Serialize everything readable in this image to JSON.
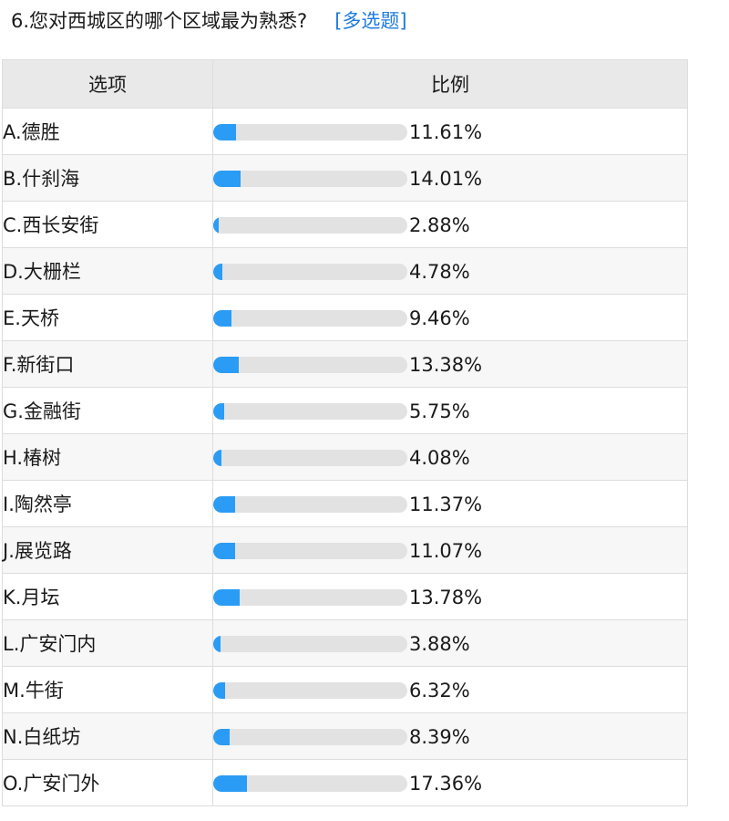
{
  "question": {
    "text": "6.您对西城区的哪个区域最为熟悉?",
    "type_label": "[多选题]"
  },
  "table": {
    "headers": [
      "选项",
      "比例"
    ],
    "rows": [
      {
        "option": "A.德胜",
        "percent_label": "11.61%",
        "percent": 11.61
      },
      {
        "option": "B.什刹海",
        "percent_label": "14.01%",
        "percent": 14.01
      },
      {
        "option": "C.西长安街",
        "percent_label": "2.88%",
        "percent": 2.88
      },
      {
        "option": "D.大栅栏",
        "percent_label": "4.78%",
        "percent": 4.78
      },
      {
        "option": "E.天桥",
        "percent_label": "9.46%",
        "percent": 9.46
      },
      {
        "option": "F.新街口",
        "percent_label": "13.38%",
        "percent": 13.38
      },
      {
        "option": "G.金融街",
        "percent_label": "5.75%",
        "percent": 5.75
      },
      {
        "option": "H.椿树",
        "percent_label": "4.08%",
        "percent": 4.08
      },
      {
        "option": "I.陶然亭",
        "percent_label": "11.37%",
        "percent": 11.37
      },
      {
        "option": "J.展览路",
        "percent_label": "11.07%",
        "percent": 11.07
      },
      {
        "option": "K.月坛",
        "percent_label": "13.78%",
        "percent": 13.78
      },
      {
        "option": "L.广安门内",
        "percent_label": "3.88%",
        "percent": 3.88
      },
      {
        "option": "M.牛街",
        "percent_label": "6.32%",
        "percent": 6.32
      },
      {
        "option": "N.白纸坊",
        "percent_label": "8.39%",
        "percent": 8.39
      },
      {
        "option": "O.广安门外",
        "percent_label": "17.36%",
        "percent": 17.36
      }
    ]
  },
  "colors": {
    "bar_fill": "#2a9cf5",
    "bar_track": "#e2e2e2",
    "type_label": "#1e7be0",
    "header_bg": "#e9e9e9"
  }
}
